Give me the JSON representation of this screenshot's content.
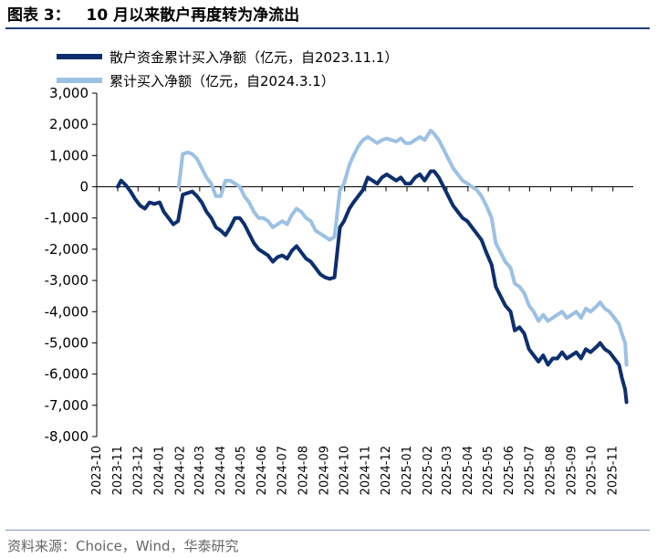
{
  "header": {
    "title": "图表 3：   10 月以来散户再度转为净流出"
  },
  "footer": {
    "source": "资料来源：Choice，Wind，华泰研究"
  },
  "chart_data": {
    "type": "line",
    "legend_position": "top-left",
    "grid": false,
    "ylim": [
      -8000,
      3000
    ],
    "yticks": [
      3000,
      2000,
      1000,
      0,
      -1000,
      -2000,
      -3000,
      -4000,
      -5000,
      -6000,
      -7000,
      -8000
    ],
    "ytick_labels": [
      "3,000",
      "2,000",
      "1,000",
      "0",
      "-1,000",
      "-2,000",
      "-3,000",
      "-4,000",
      "-5,000",
      "-6,000",
      "-7,000",
      "-8,000"
    ],
    "xticks": [
      "2023-10",
      "2023-11",
      "2023-12",
      "2024-01",
      "2024-02",
      "2024-03",
      "2024-04",
      "2024-05",
      "2024-06",
      "2024-07",
      "2024-08",
      "2024-09",
      "2024-10",
      "2024-11",
      "2024-12",
      "2025-01",
      "2025-02",
      "2025-03",
      "2025-04",
      "2025-05",
      "2025-06",
      "2025-07",
      "2025-08",
      "2025-09",
      "2025-10",
      "2025-11"
    ],
    "series": [
      {
        "name": "散户资金累计买入净额（亿元，自2023.11.1）",
        "color": "#0e2f6e",
        "points": [
          [
            "2023-11-01",
            0
          ],
          [
            "2023-11-06",
            200
          ],
          [
            "2023-11-13",
            50
          ],
          [
            "2023-11-20",
            -150
          ],
          [
            "2023-11-27",
            -400
          ],
          [
            "2023-12-04",
            -600
          ],
          [
            "2023-12-11",
            -700
          ],
          [
            "2023-12-18",
            -500
          ],
          [
            "2023-12-25",
            -550
          ],
          [
            "2024-01-02",
            -500
          ],
          [
            "2024-01-08",
            -800
          ],
          [
            "2024-01-15",
            -1000
          ],
          [
            "2024-01-22",
            -1200
          ],
          [
            "2024-01-29",
            -1100
          ],
          [
            "2024-02-05",
            -250
          ],
          [
            "2024-02-19",
            -150
          ],
          [
            "2024-02-26",
            -300
          ],
          [
            "2024-03-04",
            -500
          ],
          [
            "2024-03-11",
            -800
          ],
          [
            "2024-03-18",
            -1000
          ],
          [
            "2024-03-25",
            -1300
          ],
          [
            "2024-04-01",
            -1400
          ],
          [
            "2024-04-08",
            -1550
          ],
          [
            "2024-04-15",
            -1300
          ],
          [
            "2024-04-22",
            -1000
          ],
          [
            "2024-04-29",
            -1000
          ],
          [
            "2024-05-06",
            -1200
          ],
          [
            "2024-05-13",
            -1500
          ],
          [
            "2024-05-20",
            -1800
          ],
          [
            "2024-05-27",
            -2000
          ],
          [
            "2024-06-03",
            -2100
          ],
          [
            "2024-06-10",
            -2200
          ],
          [
            "2024-06-17",
            -2400
          ],
          [
            "2024-06-24",
            -2250
          ],
          [
            "2024-07-01",
            -2200
          ],
          [
            "2024-07-08",
            -2300
          ],
          [
            "2024-07-15",
            -2050
          ],
          [
            "2024-07-22",
            -1900
          ],
          [
            "2024-07-29",
            -2100
          ],
          [
            "2024-08-05",
            -2300
          ],
          [
            "2024-08-12",
            -2400
          ],
          [
            "2024-08-19",
            -2600
          ],
          [
            "2024-08-26",
            -2800
          ],
          [
            "2024-09-02",
            -2900
          ],
          [
            "2024-09-09",
            -2950
          ],
          [
            "2024-09-16",
            -2900
          ],
          [
            "2024-09-24",
            -1300
          ],
          [
            "2024-09-30",
            -1100
          ],
          [
            "2024-10-08",
            -700
          ],
          [
            "2024-10-14",
            -500
          ],
          [
            "2024-10-21",
            -300
          ],
          [
            "2024-10-28",
            -100
          ],
          [
            "2024-11-04",
            300
          ],
          [
            "2024-11-11",
            200
          ],
          [
            "2024-11-18",
            100
          ],
          [
            "2024-11-25",
            300
          ],
          [
            "2024-12-02",
            400
          ],
          [
            "2024-12-09",
            300
          ],
          [
            "2024-12-16",
            200
          ],
          [
            "2024-12-23",
            300
          ],
          [
            "2024-12-30",
            100
          ],
          [
            "2025-01-06",
            100
          ],
          [
            "2025-01-13",
            300
          ],
          [
            "2025-01-20",
            400
          ],
          [
            "2025-01-27",
            200
          ],
          [
            "2025-02-05",
            500
          ],
          [
            "2025-02-10",
            500
          ],
          [
            "2025-02-17",
            300
          ],
          [
            "2025-02-24",
            0
          ],
          [
            "2025-03-03",
            -300
          ],
          [
            "2025-03-10",
            -600
          ],
          [
            "2025-03-17",
            -800
          ],
          [
            "2025-03-24",
            -1000
          ],
          [
            "2025-03-31",
            -1100
          ],
          [
            "2025-04-07",
            -1300
          ],
          [
            "2025-04-14",
            -1500
          ],
          [
            "2025-04-21",
            -1700
          ],
          [
            "2025-04-28",
            -2100
          ],
          [
            "2025-05-06",
            -2500
          ],
          [
            "2025-05-12",
            -3200
          ],
          [
            "2025-05-19",
            -3500
          ],
          [
            "2025-05-26",
            -3800
          ],
          [
            "2025-06-03",
            -4000
          ],
          [
            "2025-06-09",
            -4600
          ],
          [
            "2025-06-16",
            -4500
          ],
          [
            "2025-06-23",
            -4700
          ],
          [
            "2025-06-30",
            -5200
          ],
          [
            "2025-07-07",
            -5400
          ],
          [
            "2025-07-14",
            -5600
          ],
          [
            "2025-07-21",
            -5400
          ],
          [
            "2025-07-28",
            -5700
          ],
          [
            "2025-08-04",
            -5500
          ],
          [
            "2025-08-11",
            -5500
          ],
          [
            "2025-08-18",
            -5300
          ],
          [
            "2025-08-25",
            -5500
          ],
          [
            "2025-09-01",
            -5400
          ],
          [
            "2025-09-08",
            -5300
          ],
          [
            "2025-09-15",
            -5500
          ],
          [
            "2025-09-22",
            -5200
          ],
          [
            "2025-09-29",
            -5300
          ],
          [
            "2025-10-09",
            -5100
          ],
          [
            "2025-10-13",
            -5000
          ],
          [
            "2025-10-20",
            -5200
          ],
          [
            "2025-10-27",
            -5300
          ],
          [
            "2025-11-03",
            -5500
          ],
          [
            "2025-11-10",
            -5700
          ],
          [
            "2025-11-14",
            -6100
          ],
          [
            "2025-11-19",
            -6500
          ],
          [
            "2025-11-21",
            -6900
          ]
        ]
      },
      {
        "name": "累计买入净额（亿元，自2024.3.1）",
        "color": "#9cc1e4",
        "points": [
          [
            "2024-01-30",
            0
          ],
          [
            "2024-02-05",
            1050
          ],
          [
            "2024-02-12",
            1100
          ],
          [
            "2024-02-19",
            1050
          ],
          [
            "2024-02-26",
            900
          ],
          [
            "2024-03-04",
            600
          ],
          [
            "2024-03-11",
            300
          ],
          [
            "2024-03-18",
            100
          ],
          [
            "2024-03-25",
            -300
          ],
          [
            "2024-04-01",
            -300
          ],
          [
            "2024-04-08",
            200
          ],
          [
            "2024-04-15",
            200
          ],
          [
            "2024-04-22",
            100
          ],
          [
            "2024-04-29",
            0
          ],
          [
            "2024-05-06",
            -300
          ],
          [
            "2024-05-13",
            -500
          ],
          [
            "2024-05-20",
            -800
          ],
          [
            "2024-05-27",
            -1000
          ],
          [
            "2024-06-03",
            -1000
          ],
          [
            "2024-06-10",
            -1100
          ],
          [
            "2024-06-17",
            -1300
          ],
          [
            "2024-06-24",
            -1200
          ],
          [
            "2024-07-01",
            -1100
          ],
          [
            "2024-07-08",
            -1200
          ],
          [
            "2024-07-15",
            -900
          ],
          [
            "2024-07-22",
            -700
          ],
          [
            "2024-07-29",
            -800
          ],
          [
            "2024-08-05",
            -1000
          ],
          [
            "2024-08-12",
            -1100
          ],
          [
            "2024-08-19",
            -1400
          ],
          [
            "2024-08-26",
            -1500
          ],
          [
            "2024-09-02",
            -1600
          ],
          [
            "2024-09-09",
            -1700
          ],
          [
            "2024-09-16",
            -1600
          ],
          [
            "2024-09-24",
            -100
          ],
          [
            "2024-09-30",
            100
          ],
          [
            "2024-10-08",
            700
          ],
          [
            "2024-10-14",
            1000
          ],
          [
            "2024-10-21",
            1300
          ],
          [
            "2024-10-28",
            1500
          ],
          [
            "2024-11-04",
            1600
          ],
          [
            "2024-11-11",
            1500
          ],
          [
            "2024-11-18",
            1400
          ],
          [
            "2024-11-25",
            1500
          ],
          [
            "2024-12-02",
            1550
          ],
          [
            "2024-12-09",
            1500
          ],
          [
            "2024-12-16",
            1450
          ],
          [
            "2024-12-23",
            1550
          ],
          [
            "2024-12-30",
            1400
          ],
          [
            "2025-01-06",
            1400
          ],
          [
            "2025-01-13",
            1500
          ],
          [
            "2025-01-20",
            1600
          ],
          [
            "2025-01-27",
            1500
          ],
          [
            "2025-02-05",
            1800
          ],
          [
            "2025-02-10",
            1700
          ],
          [
            "2025-02-17",
            1500
          ],
          [
            "2025-02-24",
            1200
          ],
          [
            "2025-03-03",
            900
          ],
          [
            "2025-03-10",
            600
          ],
          [
            "2025-03-17",
            400
          ],
          [
            "2025-03-24",
            200
          ],
          [
            "2025-03-31",
            100
          ],
          [
            "2025-04-07",
            0
          ],
          [
            "2025-04-14",
            -100
          ],
          [
            "2025-04-21",
            -300
          ],
          [
            "2025-04-28",
            -600
          ],
          [
            "2025-05-06",
            -1000
          ],
          [
            "2025-05-12",
            -1800
          ],
          [
            "2025-05-19",
            -2100
          ],
          [
            "2025-05-26",
            -2400
          ],
          [
            "2025-06-03",
            -2600
          ],
          [
            "2025-06-09",
            -3100
          ],
          [
            "2025-06-16",
            -3200
          ],
          [
            "2025-06-23",
            -3400
          ],
          [
            "2025-06-30",
            -3800
          ],
          [
            "2025-07-07",
            -4000
          ],
          [
            "2025-07-14",
            -4300
          ],
          [
            "2025-07-21",
            -4100
          ],
          [
            "2025-07-28",
            -4300
          ],
          [
            "2025-08-04",
            -4200
          ],
          [
            "2025-08-11",
            -4100
          ],
          [
            "2025-08-18",
            -4000
          ],
          [
            "2025-08-25",
            -4200
          ],
          [
            "2025-09-01",
            -4100
          ],
          [
            "2025-09-08",
            -4000
          ],
          [
            "2025-09-15",
            -4200
          ],
          [
            "2025-09-22",
            -3900
          ],
          [
            "2025-09-29",
            -4000
          ],
          [
            "2025-10-09",
            -3800
          ],
          [
            "2025-10-13",
            -3700
          ],
          [
            "2025-10-20",
            -3900
          ],
          [
            "2025-10-27",
            -4000
          ],
          [
            "2025-11-03",
            -4200
          ],
          [
            "2025-11-10",
            -4400
          ],
          [
            "2025-11-14",
            -4700
          ],
          [
            "2025-11-19",
            -5000
          ],
          [
            "2025-11-21",
            -5700
          ]
        ]
      }
    ]
  }
}
